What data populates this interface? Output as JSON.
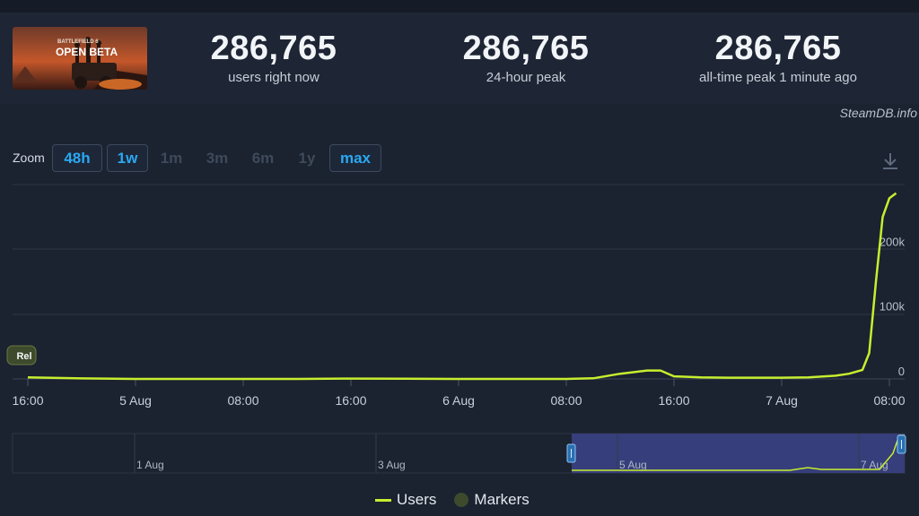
{
  "banner": {
    "title": "OPEN BETA",
    "subtitle": "BATTLEFIELD 6"
  },
  "stats": [
    {
      "value": "286,765",
      "label": "users right now"
    },
    {
      "value": "286,765",
      "label": "24-hour peak"
    },
    {
      "value": "286,765",
      "label": "all-time peak 1 minute ago"
    }
  ],
  "credit": "SteamDB.info",
  "zoom": {
    "label": "Zoom",
    "buttons": [
      {
        "label": "48h",
        "active": true
      },
      {
        "label": "1w",
        "active": true
      },
      {
        "label": "1m",
        "active": false
      },
      {
        "label": "3m",
        "active": false
      },
      {
        "label": "6m",
        "active": false
      },
      {
        "label": "1y",
        "active": false
      },
      {
        "label": "max",
        "active": true
      }
    ]
  },
  "marker": {
    "label": "Rel"
  },
  "legend": {
    "users": "Users",
    "markers": "Markers"
  },
  "colors": {
    "line": "#c7ee2e",
    "accent": "#2aa8f2",
    "marker": "#3e4a2c",
    "navigator_range": "#3a4184"
  },
  "chart_data": {
    "type": "line",
    "series": [
      {
        "name": "Users",
        "x": [
          "4 Aug 16:00",
          "4 Aug 20:00",
          "5 Aug 00:00",
          "5 Aug 04:00",
          "5 Aug 08:00",
          "5 Aug 12:00",
          "5 Aug 16:00",
          "5 Aug 20:00",
          "6 Aug 00:00",
          "6 Aug 04:00",
          "6 Aug 08:00",
          "6 Aug 10:00",
          "6 Aug 12:00",
          "6 Aug 14:00",
          "6 Aug 15:00",
          "6 Aug 16:00",
          "6 Aug 18:00",
          "6 Aug 20:00",
          "7 Aug 00:00",
          "7 Aug 02:00",
          "7 Aug 04:00",
          "7 Aug 05:00",
          "7 Aug 06:00",
          "7 Aug 06:30",
          "7 Aug 07:00",
          "7 Aug 07:30",
          "7 Aug 08:00",
          "7 Aug 08:30"
        ],
        "values": [
          2500,
          800,
          0,
          0,
          0,
          0,
          500,
          400,
          0,
          0,
          0,
          1000,
          8000,
          13000,
          13000,
          4000,
          2500,
          2000,
          2000,
          2500,
          5000,
          8000,
          14000,
          40000,
          150000,
          250000,
          279000,
          286765
        ]
      }
    ],
    "x_ticks": [
      "16:00",
      "5 Aug",
      "08:00",
      "16:00",
      "6 Aug",
      "08:00",
      "16:00",
      "7 Aug",
      "08:00"
    ],
    "y_ticks": [
      "0",
      "100k",
      "200k"
    ],
    "ylim": [
      0,
      300000
    ],
    "navigator": {
      "ticks": [
        "1 Aug",
        "3 Aug",
        "5 Aug",
        "7 Aug"
      ]
    }
  }
}
